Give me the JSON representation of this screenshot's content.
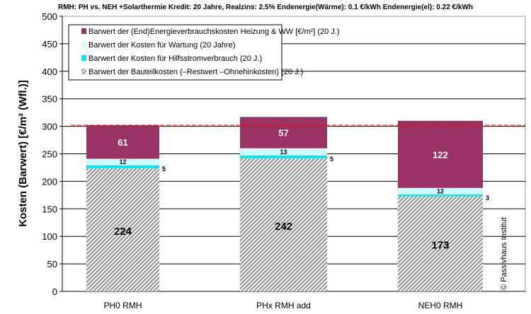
{
  "chart_data": {
    "type": "bar",
    "stacked": true,
    "title": "RMH: PH vs. NEH +Solarthermie Kredit: 20 Jahre,  Realzins: 2.5%  Endenergie(Wärme): 0.1 €/kWh  Endenergie(el): 0.22 €/kWh",
    "xlabel": "",
    "ylabel": "Kosten (Barwert)  [€/m² (Wfl.)]",
    "ylim": [
      0,
      500
    ],
    "yticks": [
      0,
      50,
      100,
      150,
      200,
      250,
      300,
      350,
      400,
      450,
      500
    ],
    "grid": true,
    "legend_position": "top-left",
    "categories": [
      "PH0    RMH",
      "PHx    RMH add",
      "NEH0    RMH"
    ],
    "series": [
      {
        "name": "Barwert der Bauteilkosten (–Restwert –Ohnehinkosten)  (20 J.)",
        "color": "#a0a0a0",
        "pattern": "hatch",
        "values": [
          224,
          242,
          173
        ]
      },
      {
        "name": "Barwert der Kosten für  Hilfsstromverbrauch (20 J.)",
        "color": "#00e5ee",
        "values": [
          5,
          5,
          3
        ]
      },
      {
        "name": "Barwert der Kosten für  Wartung (20 Jahre)",
        "color": "#ccffff",
        "values": [
          12,
          13,
          12
        ]
      },
      {
        "name": "Barwert der (End)Energieverbrauchskosten Heizung & WW   [€/m²]  (20 J.)",
        "color": "#993366",
        "values": [
          61,
          57,
          122
        ]
      }
    ],
    "reference_line": {
      "value": 302,
      "color": "#ff0000",
      "style": "dashed"
    },
    "annotation": "© Passivhaus Institut"
  }
}
